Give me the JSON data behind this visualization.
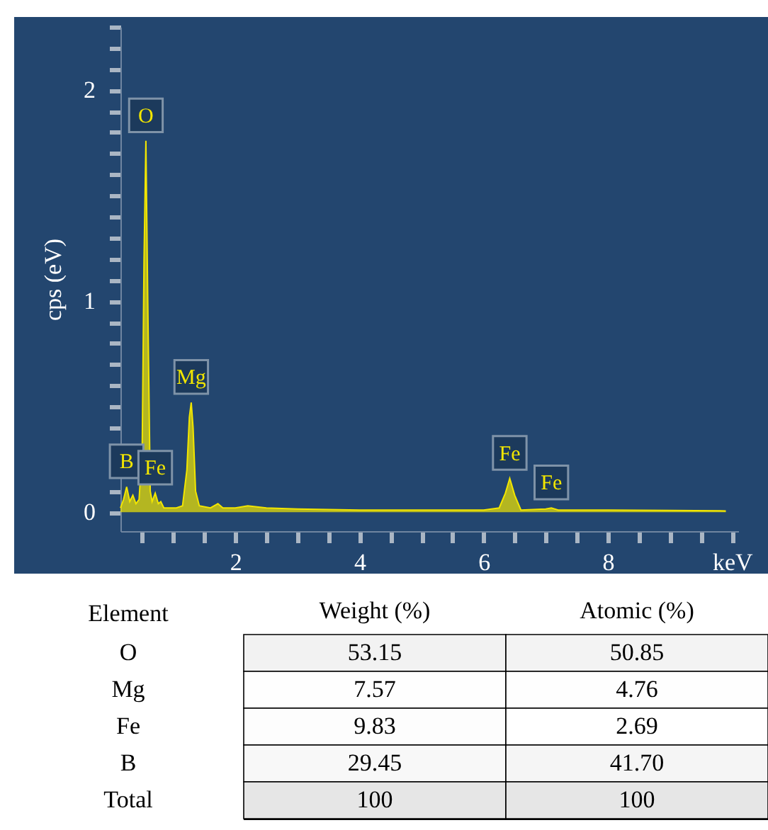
{
  "chart_data": [
    {
      "type": "area",
      "ylabel": "cps (eV)",
      "color": "#f2e600",
      "x": [
        0.15,
        0.2,
        0.25,
        0.3,
        0.35,
        0.4,
        0.45,
        0.5,
        0.53,
        0.56,
        0.59,
        0.63,
        0.66,
        0.71,
        0.76,
        0.8,
        0.85,
        0.95,
        1.05,
        1.15,
        1.22,
        1.26,
        1.29,
        1.32,
        1.36,
        1.42,
        1.6,
        1.72,
        1.8,
        2.0,
        2.2,
        2.5,
        3.0,
        4.0,
        5.0,
        6.0,
        6.25,
        6.35,
        6.42,
        6.5,
        6.6,
        7.0,
        7.09,
        7.2,
        8.0,
        9.0,
        9.9
      ],
      "values": [
        0.02,
        0.06,
        0.12,
        0.05,
        0.08,
        0.04,
        0.06,
        0.3,
        1.2,
        1.76,
        1.0,
        0.1,
        0.05,
        0.09,
        0.04,
        0.05,
        0.02,
        0.02,
        0.02,
        0.03,
        0.2,
        0.45,
        0.52,
        0.4,
        0.1,
        0.03,
        0.02,
        0.04,
        0.02,
        0.02,
        0.03,
        0.02,
        0.015,
        0.01,
        0.01,
        0.01,
        0.02,
        0.09,
        0.16,
        0.08,
        0.01,
        0.015,
        0.02,
        0.01,
        0.01,
        0.008,
        0.006
      ],
      "xlim": [
        0.15,
        10.1
      ],
      "ylim": [
        -0.09,
        2.3
      ],
      "xticks": [
        {
          "value": 0.5,
          "label": null
        },
        {
          "value": 1,
          "label": null
        },
        {
          "value": 1.5,
          "label": null
        },
        2,
        {
          "value": 2.5,
          "label": null
        },
        {
          "value": 3,
          "label": null
        },
        {
          "value": 3.5,
          "label": null
        },
        4,
        {
          "value": 4.5,
          "label": null
        },
        {
          "value": 5,
          "label": null
        },
        {
          "value": 5.5,
          "label": null
        },
        6,
        {
          "value": 6.5,
          "label": null
        },
        {
          "value": 7,
          "label": null
        },
        {
          "value": 7.5,
          "label": null
        },
        8,
        {
          "value": 8.5,
          "label": null
        },
        {
          "value": 9,
          "label": null
        },
        {
          "value": 9.5,
          "label": null
        },
        {
          "value": 10,
          "label": "keV"
        }
      ],
      "yticks": [
        0,
        {
          "value": 0.1,
          "label": null
        },
        {
          "value": 0.2,
          "label": null
        },
        {
          "value": 0.3,
          "label": null
        },
        {
          "value": 0.4,
          "label": null
        },
        {
          "value": 0.5,
          "label": null
        },
        {
          "value": 0.6,
          "label": null
        },
        {
          "value": 0.7,
          "label": null
        },
        {
          "value": 0.8,
          "label": null
        },
        {
          "value": 0.9,
          "label": null
        },
        1,
        {
          "value": 1.1,
          "label": null
        },
        {
          "value": 1.2,
          "label": null
        },
        {
          "value": 1.3,
          "label": null
        },
        {
          "value": 1.4,
          "label": null
        },
        {
          "value": 1.5,
          "label": null
        },
        {
          "value": 1.6,
          "label": null
        },
        {
          "value": 1.7,
          "label": null
        },
        {
          "value": 1.8,
          "label": null
        },
        {
          "value": 1.9,
          "label": null
        },
        2,
        {
          "value": 2.1,
          "label": null
        },
        {
          "value": 2.2,
          "label": null
        },
        {
          "value": 2.3,
          "label": null
        }
      ],
      "annotations": [
        {
          "text": "O",
          "x": 0.56,
          "y": 1.76
        },
        {
          "text": "Mg",
          "x": 1.29,
          "y": 0.52
        },
        {
          "text": "B",
          "x": 0.25,
          "y": 0.12
        },
        {
          "text": "Fe",
          "x": 0.71,
          "y": 0.09
        },
        {
          "text": "Fe",
          "x": 6.42,
          "y": 0.16
        },
        {
          "text": "Fe",
          "x": 7.09,
          "y": 0.02
        }
      ]
    },
    {
      "type": "heatmap",
      "ylabel": "Element",
      "categories": [
        "Weight (%)",
        "Atomic (%)"
      ],
      "y_categories": [
        "O",
        "Mg",
        "Fe",
        "B",
        "Total"
      ],
      "cells": [
        [
          53.15,
          50.85
        ],
        [
          7.57,
          4.76
        ],
        [
          9.83,
          2.69
        ],
        [
          29.45,
          41.7
        ],
        [
          100,
          100
        ]
      ],
      "cell_labels": [
        [
          "53.15",
          "50.85"
        ],
        [
          "7.57",
          "4.76"
        ],
        [
          "9.83",
          "2.69"
        ],
        [
          "29.45",
          "41.70"
        ],
        [
          "100",
          "100"
        ]
      ]
    }
  ]
}
